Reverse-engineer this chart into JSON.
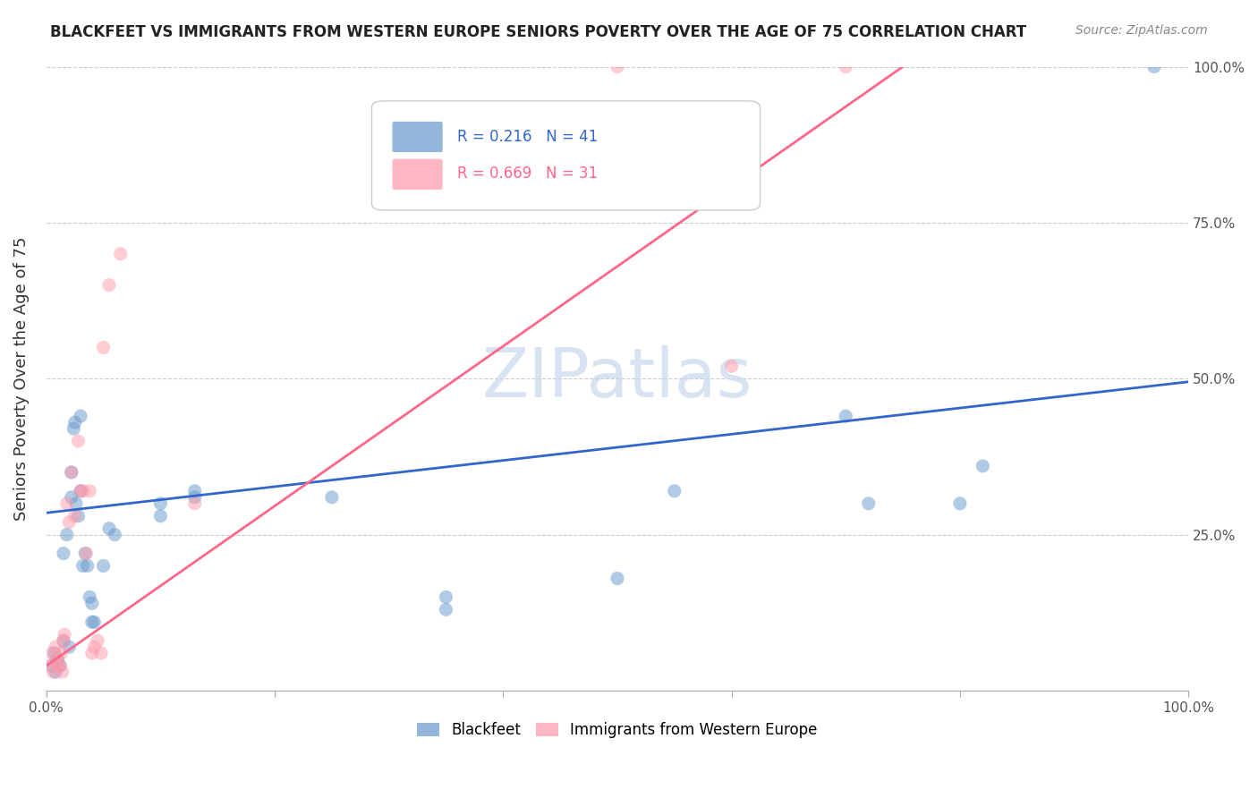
{
  "title": "BLACKFEET VS IMMIGRANTS FROM WESTERN EUROPE SENIORS POVERTY OVER THE AGE OF 75 CORRELATION CHART",
  "source": "Source: ZipAtlas.com",
  "ylabel": "Seniors Poverty Over the Age of 75",
  "xlim": [
    0,
    1.0
  ],
  "ylim": [
    0,
    1.0
  ],
  "blue_R": "0.216",
  "blue_N": "41",
  "pink_R": "0.669",
  "pink_N": "31",
  "blue_color": "#6699CC",
  "pink_color": "#FF99AA",
  "blue_line_color": "#3366CC",
  "pink_line_color": "#FF6688",
  "blue_points": [
    [
      0.005,
      0.04
    ],
    [
      0.007,
      0.06
    ],
    [
      0.008,
      0.03
    ],
    [
      0.01,
      0.05
    ],
    [
      0.012,
      0.04
    ],
    [
      0.015,
      0.08
    ],
    [
      0.015,
      0.22
    ],
    [
      0.018,
      0.25
    ],
    [
      0.02,
      0.07
    ],
    [
      0.022,
      0.31
    ],
    [
      0.022,
      0.35
    ],
    [
      0.024,
      0.42
    ],
    [
      0.025,
      0.43
    ],
    [
      0.026,
      0.3
    ],
    [
      0.028,
      0.28
    ],
    [
      0.03,
      0.44
    ],
    [
      0.03,
      0.32
    ],
    [
      0.032,
      0.2
    ],
    [
      0.034,
      0.22
    ],
    [
      0.036,
      0.2
    ],
    [
      0.038,
      0.15
    ],
    [
      0.04,
      0.14
    ],
    [
      0.04,
      0.11
    ],
    [
      0.042,
      0.11
    ],
    [
      0.05,
      0.2
    ],
    [
      0.055,
      0.26
    ],
    [
      0.06,
      0.25
    ],
    [
      0.1,
      0.3
    ],
    [
      0.1,
      0.28
    ],
    [
      0.13,
      0.32
    ],
    [
      0.13,
      0.31
    ],
    [
      0.25,
      0.31
    ],
    [
      0.35,
      0.15
    ],
    [
      0.35,
      0.13
    ],
    [
      0.5,
      0.18
    ],
    [
      0.55,
      0.32
    ],
    [
      0.7,
      0.44
    ],
    [
      0.72,
      0.3
    ],
    [
      0.8,
      0.3
    ],
    [
      0.82,
      0.36
    ],
    [
      0.97,
      1.0
    ]
  ],
  "pink_points": [
    [
      0.004,
      0.04
    ],
    [
      0.005,
      0.06
    ],
    [
      0.006,
      0.03
    ],
    [
      0.008,
      0.07
    ],
    [
      0.009,
      0.05
    ],
    [
      0.01,
      0.04
    ],
    [
      0.012,
      0.04
    ],
    [
      0.013,
      0.06
    ],
    [
      0.014,
      0.03
    ],
    [
      0.015,
      0.08
    ],
    [
      0.016,
      0.09
    ],
    [
      0.018,
      0.3
    ],
    [
      0.02,
      0.27
    ],
    [
      0.022,
      0.35
    ],
    [
      0.025,
      0.28
    ],
    [
      0.028,
      0.4
    ],
    [
      0.03,
      0.32
    ],
    [
      0.032,
      0.32
    ],
    [
      0.035,
      0.22
    ],
    [
      0.038,
      0.32
    ],
    [
      0.04,
      0.06
    ],
    [
      0.042,
      0.07
    ],
    [
      0.045,
      0.08
    ],
    [
      0.048,
      0.06
    ],
    [
      0.05,
      0.55
    ],
    [
      0.055,
      0.65
    ],
    [
      0.065,
      0.7
    ],
    [
      0.13,
      0.3
    ],
    [
      0.6,
      0.52
    ],
    [
      0.7,
      1.0
    ],
    [
      0.5,
      1.0
    ]
  ],
  "blue_line_x": [
    0.0,
    1.0
  ],
  "blue_line_y": [
    0.285,
    0.495
  ],
  "pink_line_x": [
    0.0,
    0.75
  ],
  "pink_line_y": [
    0.04,
    1.0
  ],
  "marker_size": 120,
  "marker_alpha": 0.5,
  "line_width": 2.0
}
